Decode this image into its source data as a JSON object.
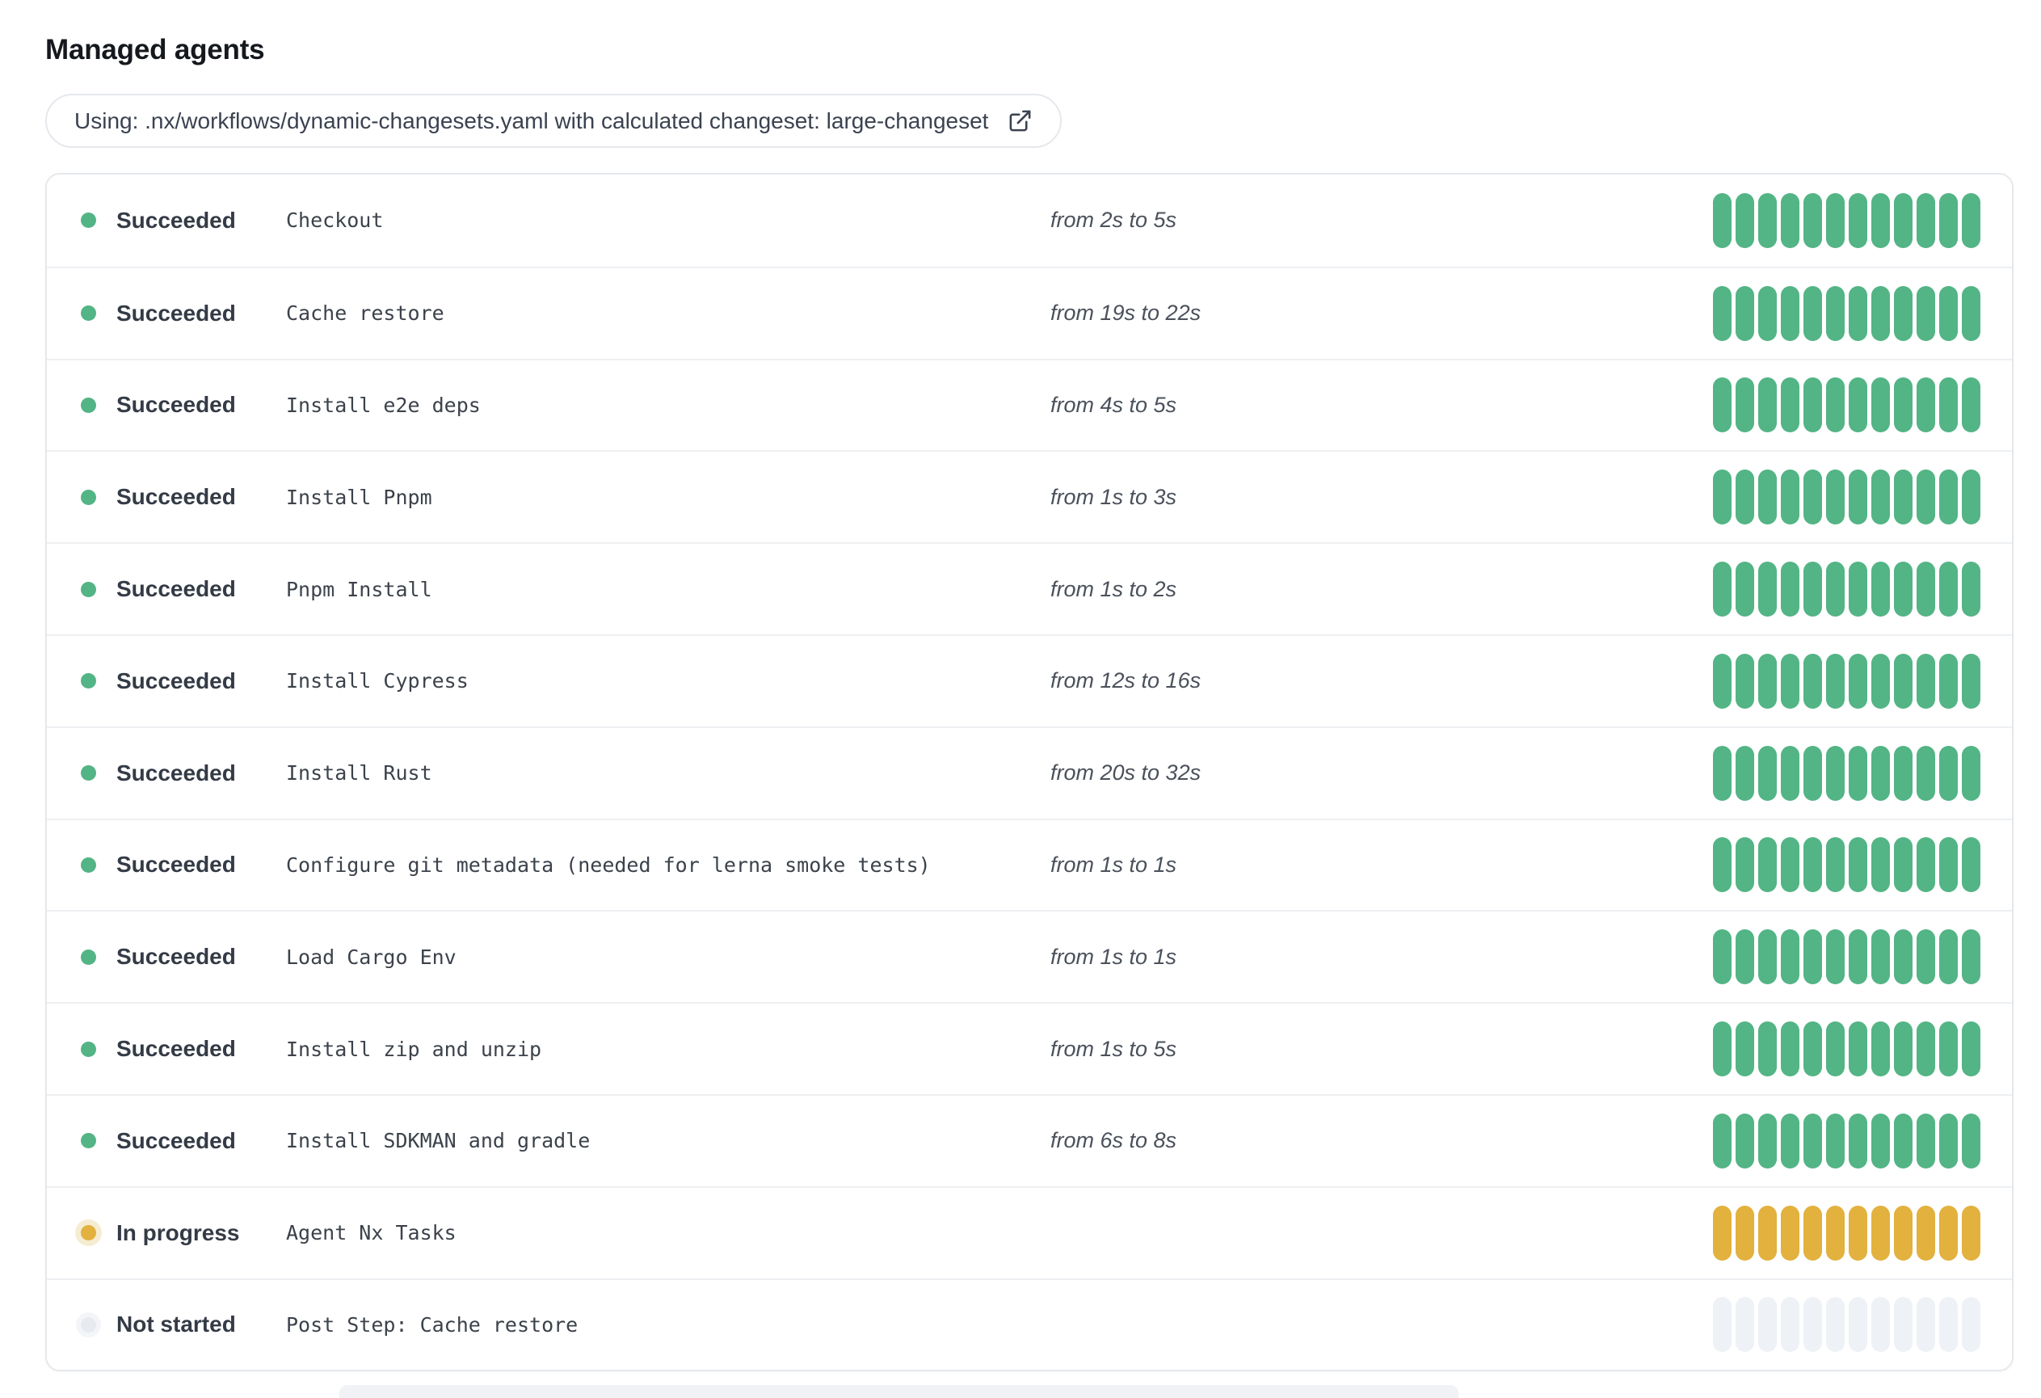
{
  "page": {
    "title": "Managed agents"
  },
  "workflow_banner": {
    "text": "Using: .nx/workflows/dynamic-changesets.yaml with calculated changeset: large-changeset",
    "icon": "external-link-icon"
  },
  "colors": {
    "succeeded": "#53b485",
    "in_progress": "#e2b13e",
    "in_progress_halo": "#f5ecd2",
    "not_started_segment": "#eef1f5",
    "not_started_dot": "#e7ebf0"
  },
  "segments_per_bar": 12,
  "agents": [
    {
      "status": "Succeeded",
      "status_key": "succeeded",
      "name": "Checkout",
      "duration": "from 2s to 5s"
    },
    {
      "status": "Succeeded",
      "status_key": "succeeded",
      "name": "Cache restore",
      "duration": "from 19s to 22s"
    },
    {
      "status": "Succeeded",
      "status_key": "succeeded",
      "name": "Install e2e deps",
      "duration": "from 4s to 5s"
    },
    {
      "status": "Succeeded",
      "status_key": "succeeded",
      "name": "Install Pnpm",
      "duration": "from 1s to 3s"
    },
    {
      "status": "Succeeded",
      "status_key": "succeeded",
      "name": "Pnpm Install",
      "duration": "from 1s to 2s"
    },
    {
      "status": "Succeeded",
      "status_key": "succeeded",
      "name": "Install Cypress",
      "duration": "from 12s to 16s"
    },
    {
      "status": "Succeeded",
      "status_key": "succeeded",
      "name": "Install Rust",
      "duration": "from 20s to 32s"
    },
    {
      "status": "Succeeded",
      "status_key": "succeeded",
      "name": "Configure git metadata (needed for lerna smoke tests)",
      "duration": "from 1s to 1s"
    },
    {
      "status": "Succeeded",
      "status_key": "succeeded",
      "name": "Load Cargo Env",
      "duration": "from 1s to 1s"
    },
    {
      "status": "Succeeded",
      "status_key": "succeeded",
      "name": "Install zip and unzip",
      "duration": "from 1s to 5s"
    },
    {
      "status": "Succeeded",
      "status_key": "succeeded",
      "name": "Install SDKMAN and gradle",
      "duration": "from 6s to 8s"
    },
    {
      "status": "In progress",
      "status_key": "in-progress",
      "name": "Agent Nx Tasks",
      "duration": ""
    },
    {
      "status": "Not started",
      "status_key": "not-started",
      "name": "Post Step: Cache restore",
      "duration": ""
    }
  ]
}
